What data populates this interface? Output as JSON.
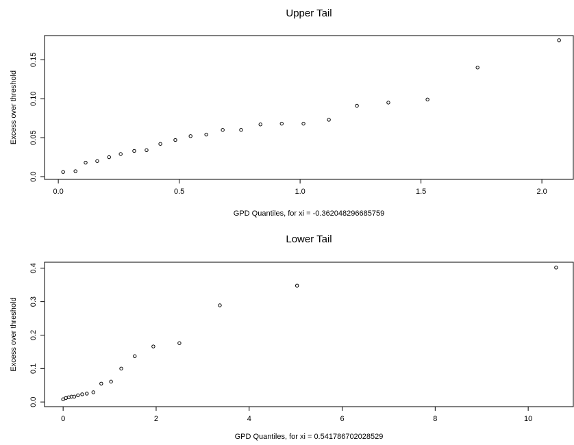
{
  "chart_data": [
    {
      "type": "scatter",
      "title": "Upper Tail",
      "xlabel": "GPD Quantiles, for xi =  -0.362048296685759",
      "ylabel": "Excess over threshold",
      "xlim": [
        -0.057,
        2.13
      ],
      "ylim": [
        -0.0035,
        0.181
      ],
      "xticks": [
        {
          "value": 0,
          "label": "0.0"
        },
        0.5,
        {
          "value": 1,
          "label": "1.0"
        },
        1.5,
        {
          "value": 2,
          "label": "2.0"
        }
      ],
      "yticks": [
        {
          "value": 0,
          "label": "0.0"
        },
        0.05,
        {
          "value": 0.1,
          "label": "0.10"
        },
        {
          "value": 0.15,
          "label": "0.15"
        }
      ],
      "color": "#000000",
      "x": [
        0.02,
        0.071,
        0.113,
        0.161,
        0.21,
        0.258,
        0.314,
        0.365,
        0.422,
        0.484,
        0.547,
        0.612,
        0.68,
        0.756,
        0.836,
        0.924,
        1.014,
        1.119,
        1.235,
        1.365,
        1.527,
        1.734,
        2.071
      ],
      "values": [
        0.006,
        0.007,
        0.018,
        0.02,
        0.025,
        0.029,
        0.033,
        0.034,
        0.042,
        0.047,
        0.052,
        0.054,
        0.06,
        0.06,
        0.067,
        0.068,
        0.068,
        0.073,
        0.091,
        0.095,
        0.099,
        0.14,
        0.175
      ]
    },
    {
      "type": "scatter",
      "title": "Lower Tail",
      "xlabel": "GPD Quantiles, for xi =  0.541786702028529",
      "ylabel": "Excess over threshold",
      "xlim": [
        -0.4,
        10.97
      ],
      "ylim": [
        -0.014,
        0.418
      ],
      "xticks": [
        0,
        2,
        4,
        6,
        8,
        10
      ],
      "yticks": [
        {
          "value": 0,
          "label": "0.0"
        },
        0.1,
        0.2,
        0.3,
        0.4
      ],
      "color": "#000000",
      "x": [
        0.0,
        0.06,
        0.12,
        0.18,
        0.24,
        0.32,
        0.41,
        0.51,
        0.65,
        0.82,
        1.03,
        1.25,
        1.54,
        1.94,
        2.5,
        3.37,
        5.03,
        10.6
      ],
      "values": [
        0.008,
        0.012,
        0.014,
        0.016,
        0.016,
        0.02,
        0.023,
        0.025,
        0.029,
        0.055,
        0.061,
        0.1,
        0.137,
        0.166,
        0.176,
        0.289,
        0.348,
        0.402
      ]
    }
  ]
}
